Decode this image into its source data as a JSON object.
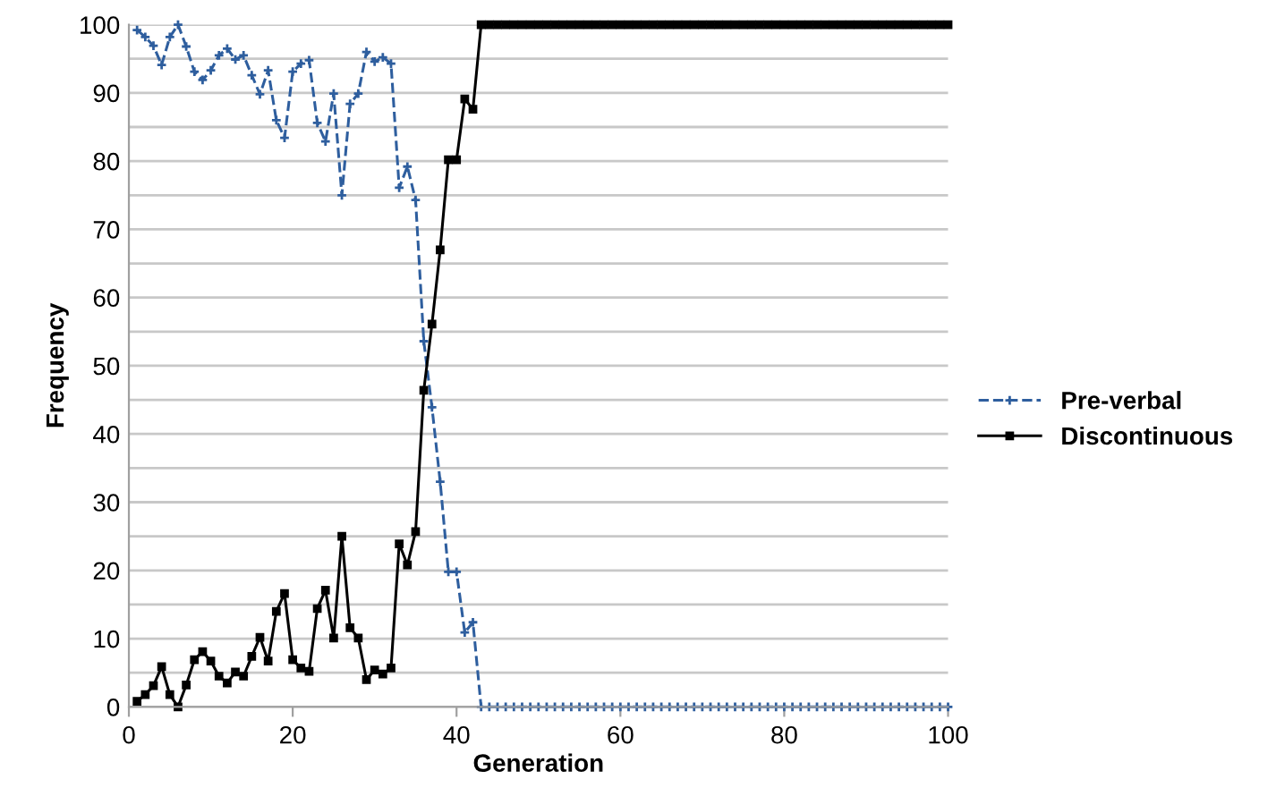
{
  "chart_data": {
    "type": "line",
    "xlabel": "Generation",
    "ylabel": "Frequency",
    "x": [
      1,
      2,
      3,
      4,
      5,
      6,
      7,
      8,
      9,
      10,
      11,
      12,
      13,
      14,
      15,
      16,
      17,
      18,
      19,
      20,
      21,
      22,
      23,
      24,
      25,
      26,
      27,
      28,
      29,
      30,
      31,
      32,
      33,
      34,
      35,
      36,
      37,
      38,
      39,
      40,
      41,
      42,
      43,
      44,
      45,
      46,
      47,
      48,
      49,
      50,
      51,
      52,
      53,
      54,
      55,
      56,
      57,
      58,
      59,
      60,
      61,
      62,
      63,
      64,
      65,
      66,
      67,
      68,
      69,
      70,
      71,
      72,
      73,
      74,
      75,
      76,
      77,
      78,
      79,
      80,
      81,
      82,
      83,
      84,
      85,
      86,
      87,
      88,
      89,
      90,
      91,
      92,
      93,
      94,
      95,
      96,
      97,
      98,
      99,
      100
    ],
    "series": [
      {
        "name": "Pre-verbal",
        "color": "#2e5e9e",
        "marker": "cross",
        "line_style": "dashed",
        "values": [
          99.2,
          98.2,
          96.9,
          94.1,
          98.2,
          100,
          96.8,
          93.1,
          91.9,
          93.3,
          95.5,
          96.5,
          94.9,
          95.5,
          92.6,
          89.8,
          93.3,
          86,
          83.4,
          93.1,
          94.3,
          94.8,
          85.6,
          82.9,
          89.9,
          75,
          88.4,
          89.9,
          96,
          94.6,
          95.2,
          94.3,
          76.1,
          79.2,
          74.3,
          53.6,
          43.9,
          33,
          19.8,
          19.8,
          10.9,
          12.4,
          0,
          0,
          0,
          0,
          0,
          0,
          0,
          0,
          0,
          0,
          0,
          0,
          0,
          0,
          0,
          0,
          0,
          0,
          0,
          0,
          0,
          0,
          0,
          0,
          0,
          0,
          0,
          0,
          0,
          0,
          0,
          0,
          0,
          0,
          0,
          0,
          0,
          0,
          0,
          0,
          0,
          0,
          0,
          0,
          0,
          0,
          0,
          0,
          0,
          0,
          0,
          0,
          0,
          0,
          0,
          0,
          0,
          0
        ]
      },
      {
        "name": "Discontinuous",
        "color": "#000000",
        "marker": "square",
        "line_style": "solid",
        "values": [
          0.8,
          1.8,
          3.1,
          5.9,
          1.8,
          0,
          3.2,
          6.9,
          8.1,
          6.7,
          4.5,
          3.5,
          5.1,
          4.5,
          7.4,
          10.2,
          6.7,
          14,
          16.6,
          6.9,
          5.7,
          5.2,
          14.4,
          17.1,
          10.1,
          25,
          11.6,
          10.1,
          4,
          5.4,
          4.8,
          5.7,
          23.9,
          20.8,
          25.7,
          46.4,
          56.1,
          67,
          80.2,
          80.2,
          89.1,
          87.6,
          100,
          100,
          100,
          100,
          100,
          100,
          100,
          100,
          100,
          100,
          100,
          100,
          100,
          100,
          100,
          100,
          100,
          100,
          100,
          100,
          100,
          100,
          100,
          100,
          100,
          100,
          100,
          100,
          100,
          100,
          100,
          100,
          100,
          100,
          100,
          100,
          100,
          100,
          100,
          100,
          100,
          100,
          100,
          100,
          100,
          100,
          100,
          100,
          100,
          100,
          100,
          100,
          100,
          100,
          100,
          100,
          100,
          100
        ]
      }
    ],
    "xlim": [
      0,
      100
    ],
    "xticks": [
      0,
      20,
      40,
      60,
      80,
      100
    ],
    "ylim": [
      0,
      100
    ],
    "yticks": [
      0,
      {
        "value": 5,
        "label": null
      },
      10,
      {
        "value": 15,
        "label": null
      },
      20,
      {
        "value": 25,
        "label": null
      },
      30,
      {
        "value": 35,
        "label": null
      },
      40,
      {
        "value": 45,
        "label": null
      },
      50,
      {
        "value": 55,
        "label": null
      },
      60,
      {
        "value": 65,
        "label": null
      },
      70,
      {
        "value": 75,
        "label": null
      },
      80,
      {
        "value": 85,
        "label": null
      },
      90,
      {
        "value": 95,
        "label": null
      },
      100
    ],
    "grid": "y",
    "legend": "right"
  }
}
